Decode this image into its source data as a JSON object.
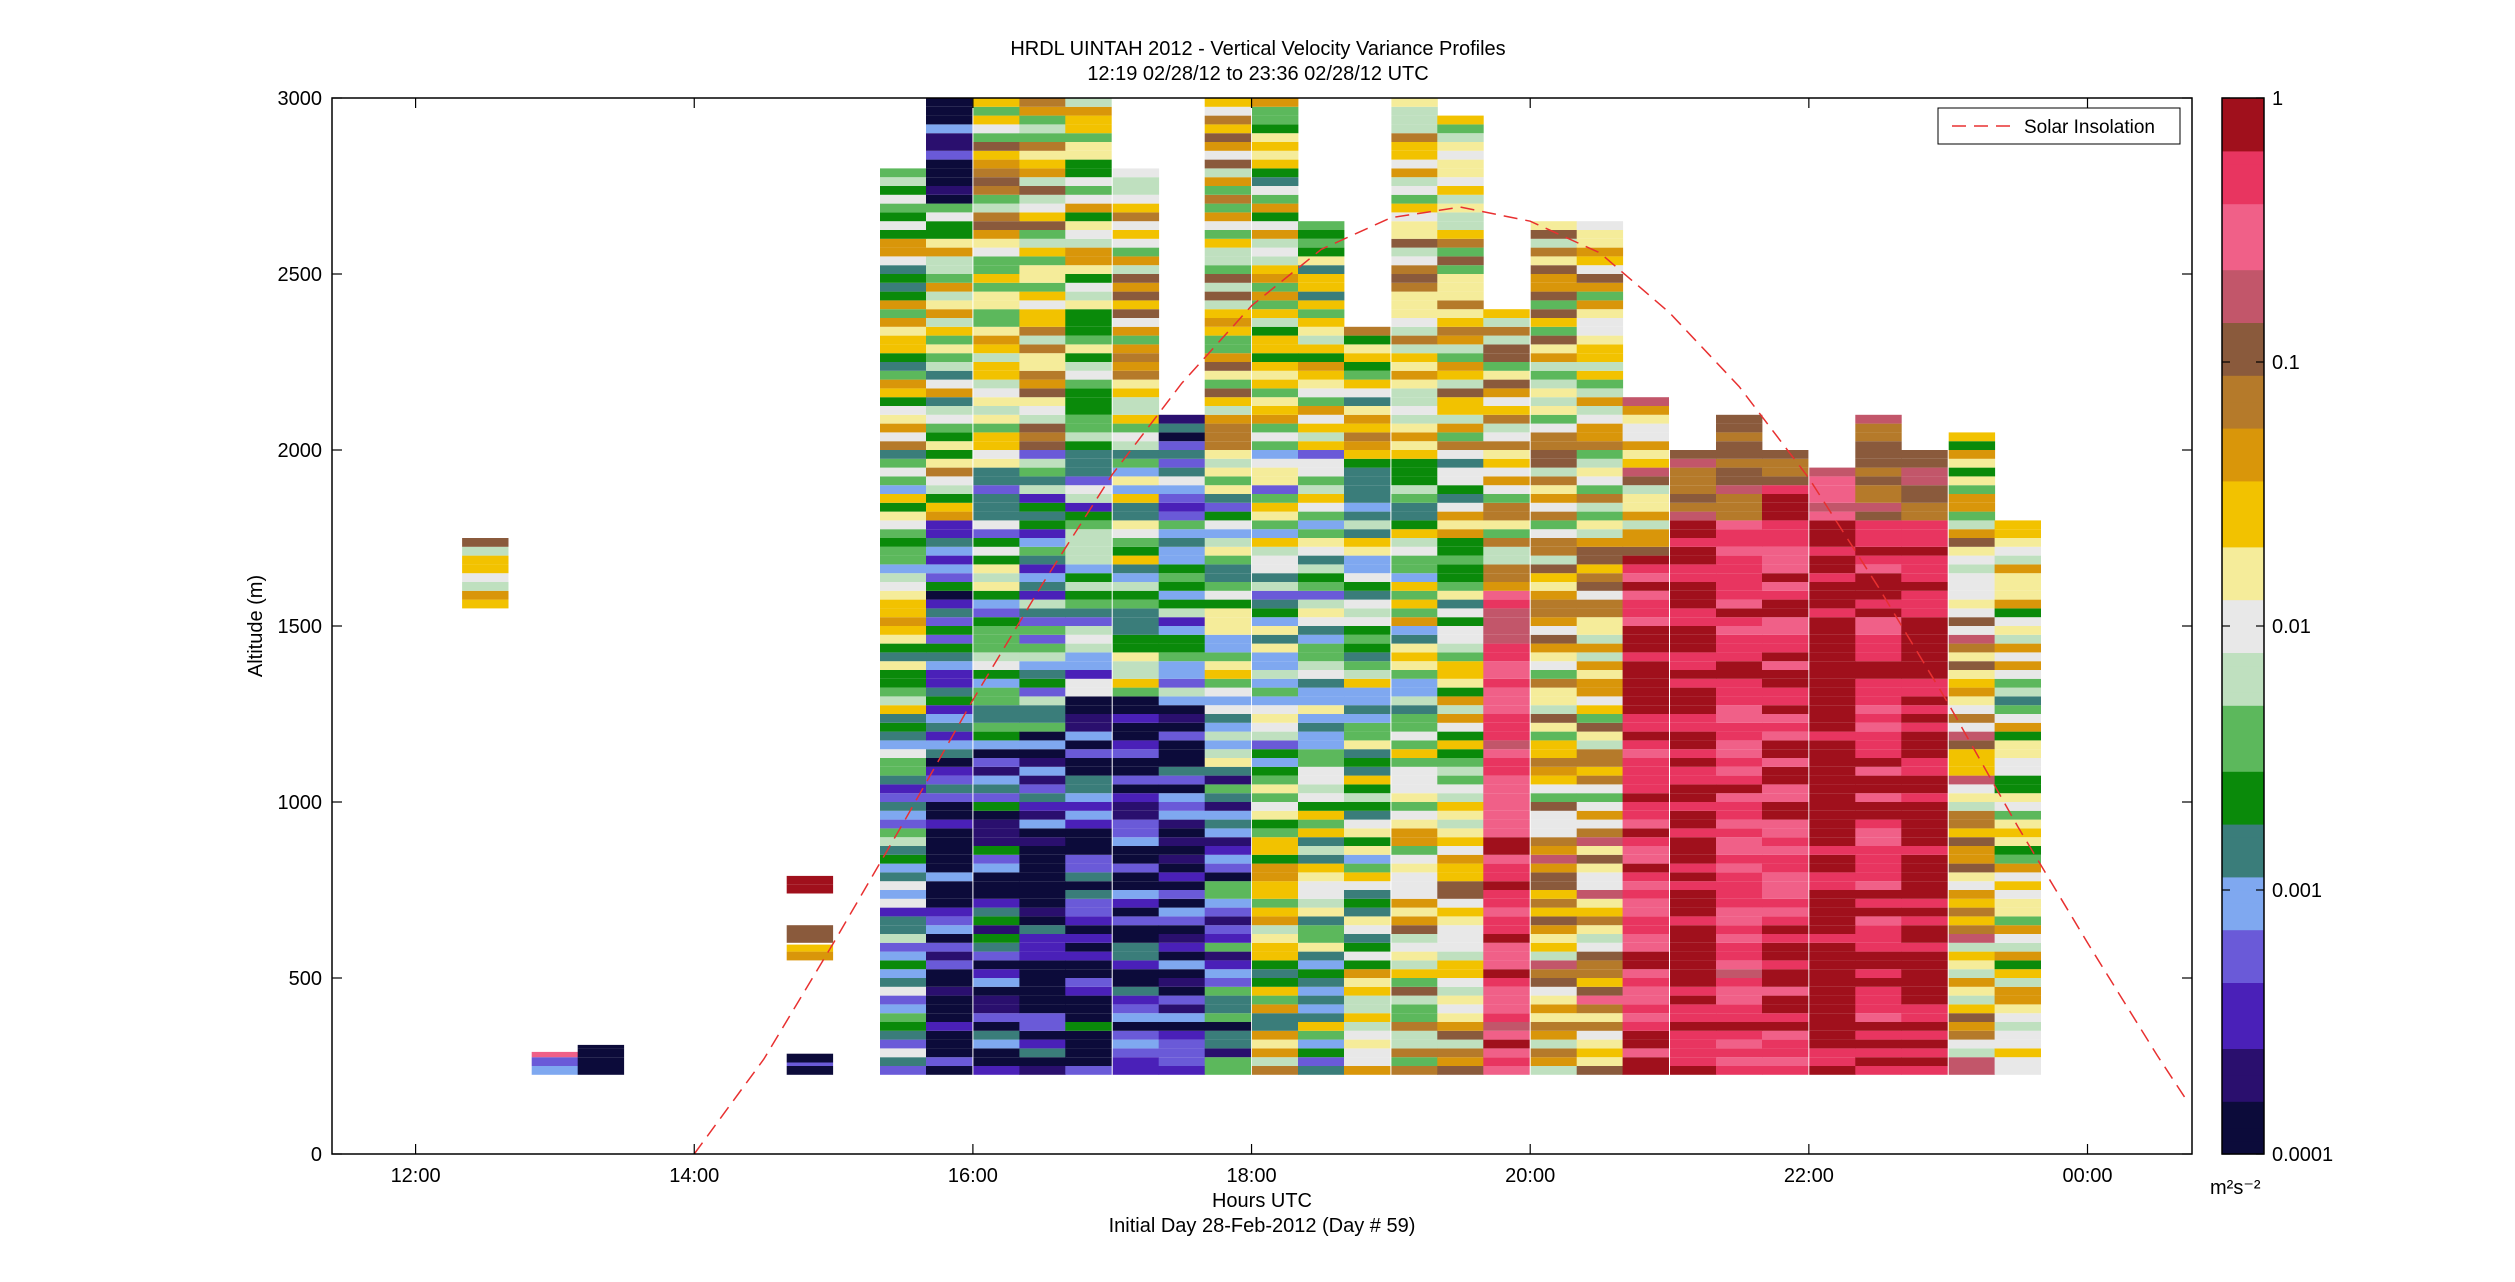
{
  "chart_data": {
    "type": "heatmap",
    "title": "HRDL UINTAH 2012 - Vertical Velocity Variance Profiles",
    "subtitle": "12:19 02/28/12 to 23:36 02/28/12  UTC",
    "xlabel": "Hours UTC",
    "xlabel2": "Initial Day 28-Feb-2012 (Day # 59)",
    "ylabel": "Altitude (m)",
    "xlim": [
      11.4,
      24.75
    ],
    "ylim": [
      0,
      3000
    ],
    "x_ticks": [
      12,
      14,
      16,
      18,
      20,
      22,
      24
    ],
    "x_tick_labels": [
      "12:00",
      "14:00",
      "16:00",
      "18:00",
      "20:00",
      "22:00",
      "00:00"
    ],
    "y_ticks": [
      0,
      500,
      1000,
      1500,
      2000,
      2500,
      3000
    ],
    "y_tick_labels": [
      "0",
      "500",
      "1000",
      "1500",
      "2000",
      "2500",
      "3000"
    ],
    "colorbar": {
      "scale": "log",
      "range": [
        0.0001,
        1
      ],
      "tick_values": [
        1,
        0.1,
        0.01,
        0.001,
        0.0001
      ],
      "tick_labels": [
        "1",
        "0.1",
        "0.01",
        "0.001",
        "0.0001"
      ],
      "units_label": "m²s⁻²",
      "colors": [
        "#0c0b3a",
        "#2a0f6e",
        "#4a20b8",
        "#6a5ad8",
        "#7fa8f0",
        "#3a7d7a",
        "#0a8a0a",
        "#5cb85c",
        "#bfe0bf",
        "#e8e8e8",
        "#f5ec9a",
        "#f2c200",
        "#d9960a",
        "#b57a2a",
        "#8a5a3c",
        "#c2566a",
        "#f06088",
        "#e83560",
        "#a0101c"
      ]
    },
    "legend": {
      "entries": [
        "Solar Insolation"
      ],
      "placement": "top-right"
    },
    "series": [
      {
        "name": "Solar Insolation",
        "style": "dashed",
        "color": "#e83030",
        "x": [
          14.0,
          14.5,
          15.0,
          15.5,
          16.0,
          16.5,
          17.0,
          17.5,
          18.0,
          18.5,
          19.0,
          19.5,
          20.0,
          20.5,
          21.0,
          21.5,
          22.0,
          22.5,
          23.0,
          23.5,
          24.0,
          24.5,
          24.7
        ],
        "y": [
          0,
          270,
          600,
          940,
          1290,
          1620,
          1930,
          2190,
          2410,
          2570,
          2660,
          2690,
          2650,
          2560,
          2390,
          2180,
          1920,
          1610,
          1280,
          930,
          600,
          280,
          160
        ]
      }
    ],
    "profiles": [
      {
        "t": 12.5,
        "bins": [
          [
            1550,
            1750,
            0.03
          ]
        ]
      },
      {
        "t": 13.0,
        "bins": [
          [
            225,
            275,
            0.0006
          ],
          [
            275,
            290,
            0.3
          ]
        ]
      },
      {
        "t": 13.33,
        "bins": [
          [
            225,
            310,
            0.0001
          ]
        ]
      },
      {
        "t": 14.83,
        "bins": [
          [
            225,
            260,
            0.0003
          ],
          [
            260,
            285,
            0.0001
          ],
          [
            550,
            595,
            0.03
          ],
          [
            600,
            650,
            0.15
          ],
          [
            740,
            790,
            0.9
          ]
        ]
      },
      {
        "t": 15.5,
        "bins": [
          [
            225,
            1250,
            0.002
          ],
          [
            1250,
            2000,
            0.006
          ],
          [
            2000,
            2800,
            0.01
          ]
        ]
      },
      {
        "t": 15.83,
        "bins": [
          [
            225,
            1000,
            0.0002
          ],
          [
            1000,
            1800,
            0.0004
          ],
          [
            1800,
            2700,
            0.01
          ],
          [
            2700,
            3000,
            0.0002
          ]
        ]
      },
      {
        "t": 16.17,
        "bins": [
          [
            225,
            1200,
            0.0004
          ],
          [
            1200,
            2000,
            0.003
          ],
          [
            2000,
            3000,
            0.02
          ]
        ]
      },
      {
        "t": 16.5,
        "bins": [
          [
            225,
            1200,
            0.0003
          ],
          [
            1200,
            2000,
            0.002
          ],
          [
            2000,
            3000,
            0.02
          ]
        ]
      },
      {
        "t": 16.83,
        "bins": [
          [
            225,
            1300,
            0.0003
          ],
          [
            1300,
            2000,
            0.002
          ],
          [
            2000,
            3000,
            0.01
          ]
        ]
      },
      {
        "t": 17.17,
        "bins": [
          [
            225,
            1300,
            0.0002
          ],
          [
            1300,
            2100,
            0.005
          ],
          [
            2100,
            2800,
            0.02
          ]
        ]
      },
      {
        "t": 17.5,
        "bins": [
          [
            225,
            1300,
            0.0002
          ],
          [
            1300,
            2000,
            0.002
          ],
          [
            2000,
            2100,
            0.0002
          ]
        ]
      },
      {
        "t": 17.83,
        "bins": [
          [
            225,
            1100,
            0.0008
          ],
          [
            1100,
            2000,
            0.004
          ],
          [
            2000,
            3000,
            0.02
          ]
        ]
      },
      {
        "t": 18.17,
        "bins": [
          [
            225,
            1000,
            0.01
          ],
          [
            1000,
            2000,
            0.004
          ],
          [
            2000,
            3000,
            0.01
          ]
        ]
      },
      {
        "t": 18.5,
        "bins": [
          [
            225,
            1000,
            0.004
          ],
          [
            1000,
            2000,
            0.004
          ],
          [
            2000,
            2650,
            0.01
          ]
        ]
      },
      {
        "t": 18.83,
        "bins": [
          [
            225,
            1000,
            0.006
          ],
          [
            1000,
            2000,
            0.005
          ],
          [
            2000,
            2350,
            0.01
          ]
        ]
      },
      {
        "t": 19.17,
        "bins": [
          [
            225,
            1000,
            0.02
          ],
          [
            1000,
            2000,
            0.006
          ],
          [
            2000,
            3000,
            0.02
          ]
        ]
      },
      {
        "t": 19.5,
        "bins": [
          [
            225,
            1000,
            0.02
          ],
          [
            1000,
            2000,
            0.008
          ],
          [
            2000,
            2950,
            0.02
          ]
        ]
      },
      {
        "t": 19.83,
        "bins": [
          [
            225,
            1000,
            0.4
          ],
          [
            1000,
            1600,
            0.3
          ],
          [
            1600,
            2400,
            0.02
          ]
        ]
      },
      {
        "t": 20.17,
        "bins": [
          [
            225,
            1000,
            0.04
          ],
          [
            1000,
            2000,
            0.02
          ],
          [
            2000,
            2650,
            0.02
          ]
        ]
      },
      {
        "t": 20.5,
        "bins": [
          [
            225,
            1000,
            0.04
          ],
          [
            1000,
            2000,
            0.02
          ],
          [
            2000,
            2650,
            0.02
          ]
        ]
      },
      {
        "t": 20.83,
        "bins": [
          [
            225,
            1700,
            0.5
          ],
          [
            1700,
            2150,
            0.04
          ]
        ]
      },
      {
        "t": 21.17,
        "bins": [
          [
            225,
            1800,
            0.8
          ],
          [
            1800,
            2000,
            0.1
          ]
        ]
      },
      {
        "t": 21.5,
        "bins": [
          [
            225,
            1800,
            0.4
          ],
          [
            1800,
            2100,
            0.1
          ]
        ]
      },
      {
        "t": 21.83,
        "bins": [
          [
            225,
            1900,
            0.5
          ],
          [
            1900,
            2000,
            0.1
          ]
        ]
      },
      {
        "t": 22.17,
        "bins": [
          [
            225,
            1800,
            0.9
          ],
          [
            1800,
            1950,
            0.2
          ]
        ]
      },
      {
        "t": 22.5,
        "bins": [
          [
            225,
            1800,
            0.5
          ],
          [
            1800,
            2100,
            0.1
          ]
        ]
      },
      {
        "t": 22.83,
        "bins": [
          [
            225,
            1800,
            0.7
          ],
          [
            1800,
            2000,
            0.1
          ]
        ]
      },
      {
        "t": 23.17,
        "bins": [
          [
            225,
            1800,
            0.03
          ],
          [
            1800,
            2050,
            0.01
          ]
        ]
      },
      {
        "t": 23.5,
        "bins": [
          [
            225,
            1800,
            0.01
          ]
        ]
      }
    ]
  }
}
